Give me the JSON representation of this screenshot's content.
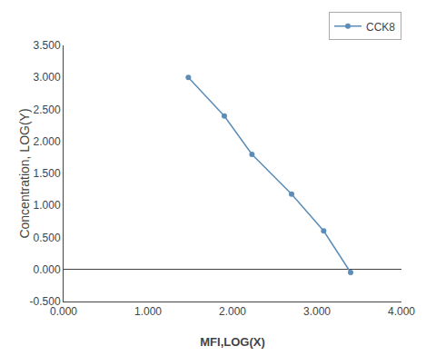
{
  "chart_data": {
    "type": "line",
    "x": [
      1.477,
      1.903,
      2.23,
      2.699,
      3.079,
      3.398
    ],
    "series": [
      {
        "name": "CCK8",
        "color": "#5b8db8",
        "marker": "circle",
        "line_style": "solid",
        "values": [
          3.0,
          2.398,
          1.799,
          1.176,
          0.602,
          -0.046
        ]
      }
    ],
    "xlabel": "MFI,LOG(X)",
    "ylabel": "Concentration, LOG(Y)",
    "xlim": [
      0.0,
      4.0
    ],
    "ylim": [
      -0.5,
      3.5
    ],
    "xticks": [
      {
        "value": 0.0,
        "label": "0.000"
      },
      {
        "value": 1.0,
        "label": "1.000"
      },
      {
        "value": 2.0,
        "label": "2.000"
      },
      {
        "value": 3.0,
        "label": "3.000"
      },
      {
        "value": 4.0,
        "label": "4.000"
      }
    ],
    "yticks": [
      {
        "value": -0.5,
        "label": "-0.500"
      },
      {
        "value": 0.0,
        "label": "0.000"
      },
      {
        "value": 0.5,
        "label": "0.500"
      },
      {
        "value": 1.0,
        "label": "1.000"
      },
      {
        "value": 1.5,
        "label": "1.500"
      },
      {
        "value": 2.0,
        "label": "2.000"
      },
      {
        "value": 2.5,
        "label": "2.500"
      },
      {
        "value": 3.0,
        "label": "3.000"
      },
      {
        "value": 3.5,
        "label": "3.500"
      }
    ],
    "grid": false,
    "legend": "upper right"
  }
}
